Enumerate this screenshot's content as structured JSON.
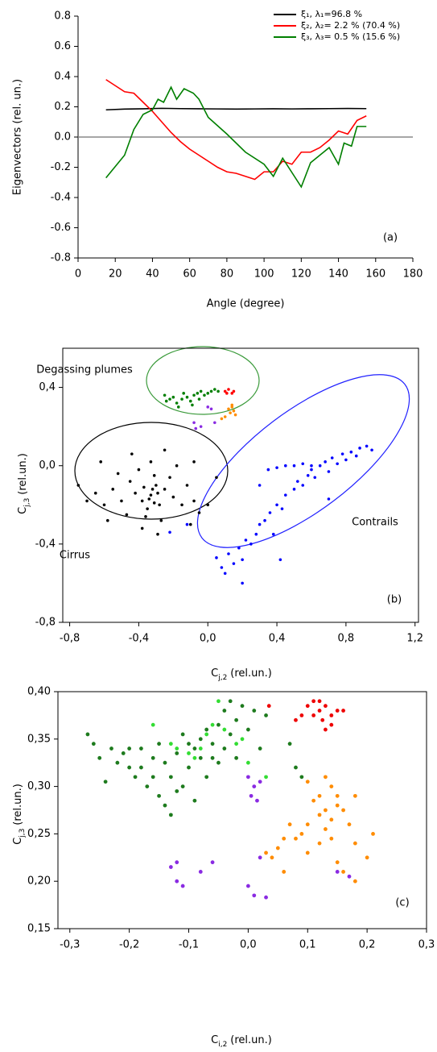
{
  "chart_data": [
    {
      "type": "line",
      "x_label": "Angle (degree)",
      "y_label": "Eigenvectors (rel. un.)",
      "annotations": [
        "(a)"
      ],
      "xlim": [
        0,
        180
      ],
      "ylim": [
        -0.8,
        0.8
      ],
      "xticks": [
        0,
        20,
        40,
        60,
        80,
        100,
        120,
        140,
        160,
        180
      ],
      "yticks": [
        -0.8,
        -0.6,
        -0.4,
        -0.2,
        {
          "value": 0,
          "label": "0.0"
        },
        0.2,
        0.4,
        0.6,
        0.8
      ],
      "frame": "axes",
      "zero_line": true,
      "legend": "top-right",
      "series": [
        {
          "name": "ξ₁,  λ₁=96.8 %",
          "color": "#000000",
          "x": [
            15,
            25,
            35,
            45,
            55,
            65,
            75,
            85,
            95,
            105,
            115,
            125,
            135,
            145,
            155
          ],
          "values": [
            0.18,
            0.185,
            0.187,
            0.19,
            0.188,
            0.187,
            0.186,
            0.185,
            0.186,
            0.187,
            0.186,
            0.187,
            0.188,
            0.189,
            0.188
          ]
        },
        {
          "name": "ξ₂,  λ₂= 2.2 % (70.4 %)",
          "color": "#ff0000",
          "x": [
            15,
            20,
            25,
            30,
            35,
            40,
            45,
            50,
            55,
            60,
            65,
            70,
            75,
            80,
            85,
            90,
            95,
            100,
            105,
            110,
            115,
            120,
            125,
            130,
            135,
            140,
            145,
            150,
            155
          ],
          "values": [
            0.38,
            0.34,
            0.3,
            0.29,
            0.23,
            0.17,
            0.1,
            0.03,
            -0.03,
            -0.08,
            -0.12,
            -0.16,
            -0.2,
            -0.23,
            -0.24,
            -0.26,
            -0.28,
            -0.23,
            -0.23,
            -0.16,
            -0.18,
            -0.1,
            -0.1,
            -0.07,
            -0.02,
            0.04,
            0.02,
            0.11,
            0.14
          ]
        },
        {
          "name": "ξ₃,  λ₃= 0.5 % (15.6 %)",
          "color": "#007f00",
          "x": [
            15,
            25,
            30,
            35,
            40,
            43,
            46,
            50,
            53,
            57,
            62,
            65,
            70,
            80,
            90,
            100,
            105,
            110,
            120,
            125,
            130,
            135,
            140,
            143,
            147,
            150,
            155
          ],
          "values": [
            -0.27,
            -0.12,
            0.05,
            0.15,
            0.18,
            0.25,
            0.23,
            0.33,
            0.25,
            0.32,
            0.29,
            0.25,
            0.13,
            0.02,
            -0.1,
            -0.18,
            -0.26,
            -0.14,
            -0.33,
            -0.17,
            -0.12,
            -0.07,
            -0.18,
            -0.04,
            -0.06,
            0.07,
            0.07
          ]
        }
      ]
    },
    {
      "type": "scatter",
      "x_label": {
        "symbol": "C",
        "subscript": "j,2",
        "rest": "(rel.un.)"
      },
      "y_label": {
        "symbol": "C",
        "subscript": "j,3",
        "rest": "(rel.un.)"
      },
      "annotations": [
        "Degassing plumes",
        "Cirrus",
        "Contrails",
        "(b)"
      ],
      "xlim": [
        -0.84,
        1.22
      ],
      "ylim": [
        -0.8,
        0.6
      ],
      "xticks": [
        {
          "value": -0.8,
          "label": "-0,8"
        },
        {
          "value": -0.4,
          "label": "-0,4"
        },
        {
          "value": 0,
          "label": "0,0"
        },
        {
          "value": 0.4,
          "label": "0,4"
        },
        {
          "value": 0.8,
          "label": "0,8"
        },
        {
          "value": 1.2,
          "label": "1,2"
        }
      ],
      "yticks": [
        {
          "value": -0.8,
          "label": "-0,8"
        },
        {
          "value": -0.4,
          "label": "-0,4"
        },
        {
          "value": 0,
          "label": "0,0"
        },
        {
          "value": 0.4,
          "label": "0,4"
        }
      ],
      "frame": "box",
      "series": [
        {
          "color": "#000000",
          "x": [
            -0.33,
            -0.3,
            -0.38,
            -0.25,
            -0.42,
            -0.35,
            -0.28,
            -0.45,
            -0.2,
            -0.5,
            -0.31,
            -0.36,
            -0.22,
            -0.55,
            -0.15,
            -0.4,
            -0.27,
            -0.6,
            -0.12,
            -0.47,
            -0.33,
            -0.65,
            -0.08,
            -0.38,
            -0.7,
            -0.18,
            -0.52,
            -0.29,
            -0.05,
            -0.58,
            -0.44,
            -0.25,
            -0.75,
            -0.1,
            -0.62,
            -0.32,
            -0.34,
            -0.29,
            -0.37,
            -0.31,
            0.0,
            -0.08,
            0.05
          ],
          "values": [
            -0.15,
            -0.1,
            -0.18,
            -0.12,
            -0.14,
            -0.22,
            -0.2,
            -0.08,
            -0.16,
            -0.18,
            -0.05,
            -0.26,
            -0.06,
            -0.12,
            -0.2,
            -0.02,
            -0.28,
            -0.2,
            -0.1,
            -0.25,
            0.02,
            -0.14,
            -0.18,
            -0.32,
            -0.18,
            0.0,
            -0.04,
            -0.35,
            -0.24,
            -0.28,
            0.06,
            0.08,
            -0.1,
            -0.3,
            0.02,
            -0.12,
            -0.17,
            -0.14,
            -0.11,
            -0.19,
            -0.2,
            0.02,
            -0.06
          ]
        },
        {
          "color": "#0000ff",
          "x": [
            0.05,
            0.08,
            0.12,
            0.1,
            0.15,
            0.18,
            0.2,
            0.22,
            0.25,
            0.28,
            0.3,
            0.33,
            0.36,
            0.4,
            0.43,
            0.45,
            0.5,
            0.52,
            0.55,
            0.58,
            0.6,
            0.62,
            0.65,
            0.68,
            0.7,
            0.72,
            0.75,
            0.78,
            0.8,
            0.83,
            0.86,
            0.88,
            0.92,
            0.95,
            0.4,
            0.45,
            0.5,
            0.55,
            0.6,
            0.35,
            0.3,
            0.38,
            0.42,
            0.2,
            -0.12,
            -0.22,
            0.7
          ],
          "values": [
            -0.47,
            -0.52,
            -0.45,
            -0.55,
            -0.5,
            -0.42,
            -0.48,
            -0.38,
            -0.4,
            -0.35,
            -0.3,
            -0.28,
            -0.24,
            -0.2,
            -0.22,
            -0.15,
            -0.12,
            -0.08,
            -0.1,
            -0.05,
            -0.02,
            -0.06,
            0.0,
            0.02,
            -0.03,
            0.04,
            0.01,
            0.06,
            0.03,
            0.07,
            0.05,
            0.09,
            0.1,
            0.08,
            -0.01,
            0.0,
            0.0,
            0.01,
            0.0,
            -0.02,
            -0.1,
            -0.35,
            -0.48,
            -0.6,
            -0.3,
            -0.34,
            -0.17
          ]
        },
        {
          "color": "#007f00",
          "x": [
            -0.25,
            -0.22,
            -0.2,
            -0.18,
            -0.15,
            -0.12,
            -0.1,
            -0.08,
            -0.06,
            -0.04,
            -0.02,
            0.0,
            0.02,
            0.04,
            -0.14,
            -0.17,
            -0.09,
            -0.05,
            -0.24,
            0.06
          ],
          "values": [
            0.36,
            0.34,
            0.35,
            0.32,
            0.34,
            0.35,
            0.33,
            0.36,
            0.37,
            0.38,
            0.36,
            0.37,
            0.38,
            0.39,
            0.37,
            0.3,
            0.31,
            0.34,
            0.33,
            0.38
          ]
        },
        {
          "color": "#ff0000",
          "x": [
            0.1,
            0.12,
            0.14,
            0.15,
            0.11
          ],
          "values": [
            0.38,
            0.39,
            0.37,
            0.38,
            0.37
          ]
        },
        {
          "color": "#ff8c00",
          "x": [
            0.12,
            0.14,
            0.13,
            0.15,
            0.1,
            0.08,
            0.14,
            0.16
          ],
          "values": [
            0.29,
            0.3,
            0.27,
            0.28,
            0.25,
            0.24,
            0.31,
            0.26
          ]
        },
        {
          "color": "#8a2be2",
          "x": [
            -0.08,
            -0.04,
            0.0,
            0.02,
            -0.07,
            0.04
          ],
          "values": [
            0.22,
            0.2,
            0.3,
            0.29,
            0.19,
            0.22
          ]
        }
      ]
    },
    {
      "type": "scatter",
      "x_label": {
        "symbol": "C",
        "subscript": "i,2",
        "rest": "(rel.un.)"
      },
      "y_label": {
        "symbol": "C",
        "subscript": "j,3",
        "rest": "(rel.un.)"
      },
      "annotations": [
        "(c)"
      ],
      "xlim": [
        -0.32,
        0.3
      ],
      "ylim": [
        0.15,
        0.4
      ],
      "xticks": [
        {
          "value": -0.3,
          "label": "-0,3"
        },
        {
          "value": -0.2,
          "label": "-0,2"
        },
        {
          "value": -0.1,
          "label": "-0,1"
        },
        {
          "value": 0,
          "label": "0,0"
        },
        {
          "value": 0.1,
          "label": "0,1"
        },
        {
          "value": 0.2,
          "label": "0,2"
        },
        {
          "value": 0.3,
          "label": "0,3"
        }
      ],
      "yticks": [
        {
          "value": 0.15,
          "label": "0,15"
        },
        {
          "value": 0.2,
          "label": "0,20"
        },
        {
          "value": 0.25,
          "label": "0,25"
        },
        {
          "value": 0.3,
          "label": "0,30"
        },
        {
          "value": 0.35,
          "label": "0,35"
        },
        {
          "value": 0.4,
          "label": "0,40"
        }
      ],
      "frame": "box",
      "series": [
        {
          "color": "#1e7b1e",
          "x": [
            -0.27,
            -0.26,
            -0.25,
            -0.24,
            -0.23,
            -0.22,
            -0.21,
            -0.2,
            -0.19,
            -0.18,
            -0.17,
            -0.16,
            -0.15,
            -0.14,
            -0.13,
            -0.13,
            -0.12,
            -0.11,
            -0.1,
            -0.1,
            -0.09,
            -0.08,
            -0.08,
            -0.07,
            -0.07,
            -0.06,
            -0.05,
            -0.05,
            -0.04,
            -0.04,
            -0.03,
            -0.02,
            -0.02,
            -0.01,
            0.0,
            0.01,
            0.02,
            0.03,
            -0.15,
            -0.18,
            -0.12,
            -0.09,
            -0.06,
            -0.11,
            -0.16,
            -0.2,
            -0.14,
            -0.03,
            0.08,
            0.09,
            0.07
          ],
          "values": [
            0.355,
            0.345,
            0.33,
            0.305,
            0.34,
            0.325,
            0.335,
            0.32,
            0.31,
            0.34,
            0.3,
            0.33,
            0.29,
            0.325,
            0.27,
            0.31,
            0.335,
            0.3,
            0.345,
            0.32,
            0.285,
            0.35,
            0.33,
            0.36,
            0.31,
            0.345,
            0.365,
            0.325,
            0.38,
            0.34,
            0.355,
            0.37,
            0.33,
            0.385,
            0.36,
            0.38,
            0.34,
            0.375,
            0.345,
            0.32,
            0.295,
            0.34,
            0.33,
            0.355,
            0.31,
            0.34,
            0.28,
            0.39,
            0.32,
            0.31,
            0.345
          ]
        },
        {
          "color": "#33dd33",
          "x": [
            -0.16,
            -0.12,
            -0.08,
            -0.06,
            -0.04,
            -0.02,
            -0.1,
            -0.07,
            -0.13,
            -0.09,
            -0.05,
            -0.01,
            0.0,
            0.03
          ],
          "values": [
            0.365,
            0.34,
            0.34,
            0.365,
            0.36,
            0.345,
            0.335,
            0.355,
            0.345,
            0.33,
            0.39,
            0.35,
            0.325,
            0.31
          ]
        },
        {
          "color": "#ee0000",
          "x": [
            0.035,
            0.08,
            0.09,
            0.1,
            0.11,
            0.12,
            0.125,
            0.13,
            0.14,
            0.14,
            0.15,
            0.13,
            0.11,
            0.12,
            0.16
          ],
          "values": [
            0.385,
            0.37,
            0.375,
            0.385,
            0.39,
            0.38,
            0.37,
            0.385,
            0.375,
            0.365,
            0.38,
            0.36,
            0.375,
            0.39,
            0.38
          ]
        },
        {
          "color": "#ff8c00",
          "x": [
            0.1,
            0.12,
            0.13,
            0.14,
            0.15,
            0.13,
            0.12,
            0.14,
            0.15,
            0.16,
            0.11,
            0.17,
            0.13,
            0.1,
            0.09,
            0.08,
            0.07,
            0.06,
            0.05,
            0.04,
            0.03,
            0.06,
            0.1,
            0.12,
            0.15,
            0.18,
            0.21,
            0.2,
            0.18,
            0.16,
            0.14,
            0.18
          ],
          "values": [
            0.305,
            0.29,
            0.31,
            0.3,
            0.28,
            0.275,
            0.27,
            0.265,
            0.29,
            0.275,
            0.285,
            0.26,
            0.255,
            0.26,
            0.25,
            0.245,
            0.26,
            0.245,
            0.235,
            0.225,
            0.23,
            0.21,
            0.23,
            0.24,
            0.22,
            0.24,
            0.25,
            0.225,
            0.2,
            0.21,
            0.245,
            0.29
          ]
        },
        {
          "color": "#8a2be2",
          "x": [
            0.0,
            0.01,
            0.02,
            0.005,
            0.015,
            -0.12,
            -0.13,
            -0.12,
            -0.11,
            -0.08,
            -0.06,
            0.0,
            0.01,
            0.03,
            0.02,
            0.15,
            0.17
          ],
          "values": [
            0.31,
            0.3,
            0.305,
            0.29,
            0.285,
            0.22,
            0.215,
            0.2,
            0.195,
            0.21,
            0.22,
            0.195,
            0.185,
            0.183,
            0.225,
            0.21,
            0.205
          ]
        }
      ]
    }
  ]
}
